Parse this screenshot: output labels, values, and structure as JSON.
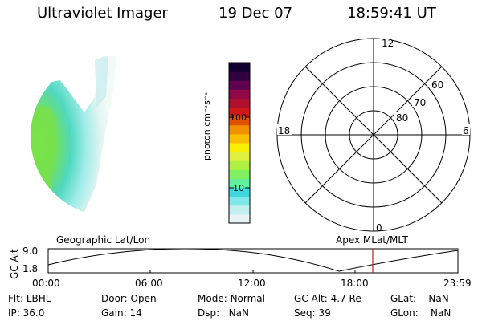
{
  "header": {
    "instrument": "Ultraviolet Imager",
    "date": "19 Dec 07",
    "time": "18:59:41 UT"
  },
  "colorbar": {
    "label": "photon cm⁻²s⁻¹",
    "ticks": [
      "100",
      "10"
    ],
    "colors": [
      "#e8f4f4",
      "#c0f0f0",
      "#80e8e8",
      "#40d8e0",
      "#60f0a0",
      "#80f060",
      "#b0f040",
      "#e0f040",
      "#f8f000",
      "#f8c000",
      "#f09000",
      "#e05000",
      "#d01818",
      "#b01030",
      "#900848",
      "#600050",
      "#300040",
      "#100030"
    ]
  },
  "polar_plot": {
    "clock_labels": {
      "top": "12",
      "left": "18",
      "right": "6",
      "bottom": "0"
    },
    "lat_labels": [
      "80",
      "70",
      "60"
    ]
  },
  "timeline": {
    "ylabel": "GC Alt",
    "left_title": "Geographic Lat/Lon",
    "right_title": "Apex MLat/MLT",
    "y_ticks": [
      "9.0",
      "1.8"
    ],
    "x_ticks": [
      "00:00",
      "06:00",
      "12:00",
      "18:00",
      "23:59"
    ],
    "marker_color": "#c02020"
  },
  "footer": {
    "row1": [
      {
        "label": "Flt:",
        "value": "LBHL"
      },
      {
        "label": "Door:",
        "value": "Open"
      },
      {
        "label": "Mode:",
        "value": "Normal"
      },
      {
        "label": "GC Alt:",
        "value": "4.7 Re"
      },
      {
        "label": "GLat:",
        "value": "NaN"
      }
    ],
    "row2": [
      {
        "label": "IP:",
        "value": "36.0"
      },
      {
        "label": "Gain:",
        "value": "14"
      },
      {
        "label": "Dsp:",
        "value": "NaN"
      },
      {
        "label": "Seq:",
        "value": "39"
      },
      {
        "label": "GLon:",
        "value": "NaN"
      }
    ]
  }
}
